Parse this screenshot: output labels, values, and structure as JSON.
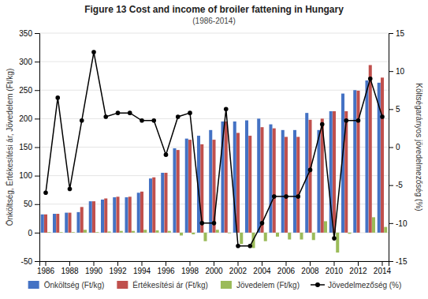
{
  "chart_data": {
    "type": "bar",
    "title": "Figure 13 Cost and income of broiler fattening in Hungary",
    "subtitle": "(1986-2014)",
    "ylabel": "Önköltség, Értékesítési ár, Jövedelem (Ft/kg)",
    "y2label": "Költségarányos jövedelmezőség (%)",
    "categories": [
      "1986",
      null,
      "1988",
      null,
      "1990",
      null,
      "1992",
      null,
      "1994",
      null,
      "1996",
      null,
      "1998",
      null,
      "2000",
      null,
      "2002",
      null,
      "2004",
      null,
      "2006",
      null,
      "2008",
      null,
      "2010",
      null,
      "2012",
      null,
      "2014"
    ],
    "series": [
      {
        "name": "Önköltség (Ft/kg)",
        "type": "bar",
        "color": "#4472C4",
        "values": [
          32,
          33,
          35,
          36,
          55,
          58,
          62,
          62,
          70,
          95,
          105,
          148,
          165,
          170,
          180,
          195,
          195,
          197,
          200,
          190,
          180,
          180,
          210,
          180,
          213,
          244,
          250,
          267,
          263
        ]
      },
      {
        "name": "Értékesítési ár (Ft/kg)",
        "type": "bar",
        "color": "#C0504D",
        "values": [
          32,
          33,
          35,
          45,
          55,
          60,
          63,
          63,
          72,
          97,
          105,
          145,
          163,
          155,
          163,
          195,
          175,
          170,
          185,
          183,
          168,
          168,
          198,
          200,
          213,
          213,
          249,
          294,
          272
        ]
      },
      {
        "name": "Jövedelem (Ft/kg)",
        "type": "bar",
        "color": "#9BBB59",
        "values": [
          1,
          1,
          1,
          5,
          1,
          2,
          3,
          3,
          5,
          4,
          3,
          -5,
          -3,
          -15,
          5,
          -1,
          -20,
          -27,
          -15,
          -7,
          -12,
          -12,
          -13,
          20,
          -35,
          -2,
          0,
          27,
          10
        ]
      },
      {
        "name": "Jövedelmezőség (%)",
        "type": "line",
        "axis": "y2",
        "color": "#000000",
        "marker": "circle",
        "values": [
          -6.0,
          6.5,
          -5.5,
          3.5,
          12.5,
          4.0,
          4.5,
          4.5,
          3.5,
          3.5,
          -1.0,
          4.0,
          4.5,
          -10.0,
          -10.0,
          5.0,
          -13.0,
          -13.0,
          -10.0,
          -6.5,
          -6.5,
          -6.5,
          -3.0,
          3.0,
          -12.0,
          3.5,
          3.5,
          9.0,
          4.0
        ]
      }
    ],
    "ylim": [
      -50,
      350
    ],
    "yticks": [
      -50,
      0,
      50,
      100,
      150,
      200,
      250,
      300,
      350
    ],
    "y2lim": [
      -15,
      15
    ],
    "y2ticks": [
      -15,
      -10,
      -5,
      0,
      5,
      10,
      15
    ],
    "grid": true,
    "legend": "bottom"
  }
}
